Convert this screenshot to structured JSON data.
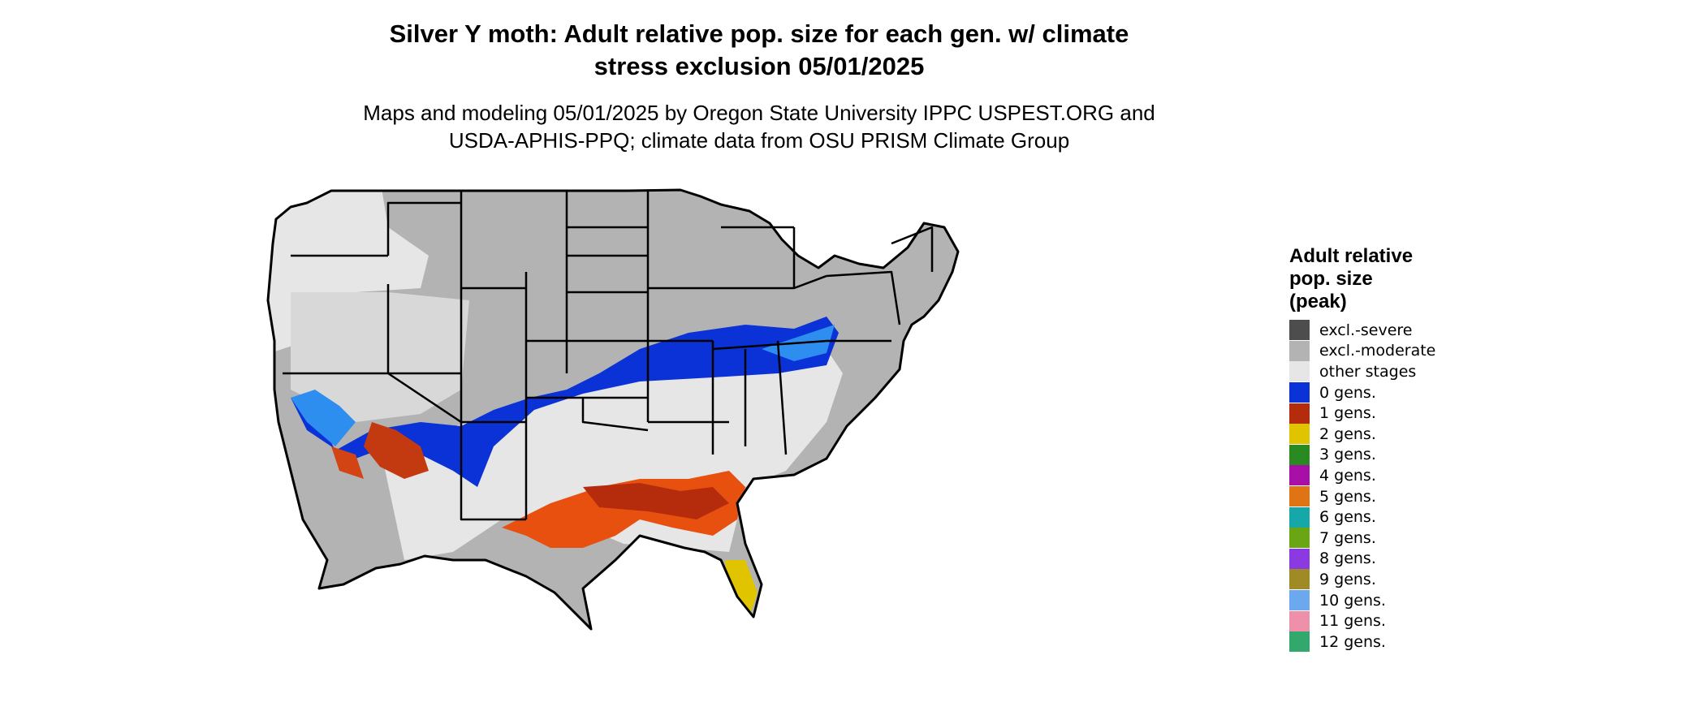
{
  "header": {
    "title_line1": "Silver Y moth: Adult relative pop. size for each gen. w/ climate",
    "title_line2": "stress exclusion 05/01/2025",
    "subtitle_line1": "Maps and modeling 05/01/2025 by Oregon State University IPPC USPEST.ORG and",
    "subtitle_line2": "USDA-APHIS-PPQ; climate data from OSU PRISM Climate Group"
  },
  "legend": {
    "title_line1": "Adult relative",
    "title_line2": "pop. size",
    "title_line3": "(peak)",
    "items": [
      {
        "label": "excl.-severe",
        "color": "#4d4d4d"
      },
      {
        "label": "excl.-moderate",
        "color": "#b3b3b3"
      },
      {
        "label": "other stages",
        "color": "#e6e6e6"
      },
      {
        "label": "0 gens.",
        "color": "#0a32d6"
      },
      {
        "label": "1 gens.",
        "color": "#b52c0c"
      },
      {
        "label": "2 gens.",
        "color": "#e1c400"
      },
      {
        "label": "3 gens.",
        "color": "#2a8a22"
      },
      {
        "label": "4 gens.",
        "color": "#a70fa7"
      },
      {
        "label": "5 gens.",
        "color": "#e07314"
      },
      {
        "label": "6 gens.",
        "color": "#16a8a8"
      },
      {
        "label": "7 gens.",
        "color": "#6aa514"
      },
      {
        "label": "8 gens.",
        "color": "#8a3ae0"
      },
      {
        "label": "9 gens.",
        "color": "#a08a26"
      },
      {
        "label": "10 gens.",
        "color": "#6ca8ee"
      },
      {
        "label": "11 gens.",
        "color": "#ee90aa"
      },
      {
        "label": "12 gens.",
        "color": "#32a86c"
      }
    ]
  },
  "map": {
    "colors": {
      "excluded_moderate": "#b3b3b3",
      "other_stages": "#e6e6e6",
      "gen0": "#0a32d6",
      "gen0_light": "#2d8ef0",
      "gen1": "#b52c0c",
      "gen1_orange": "#e85010",
      "gen2": "#e1c400",
      "border": "#000000"
    }
  }
}
